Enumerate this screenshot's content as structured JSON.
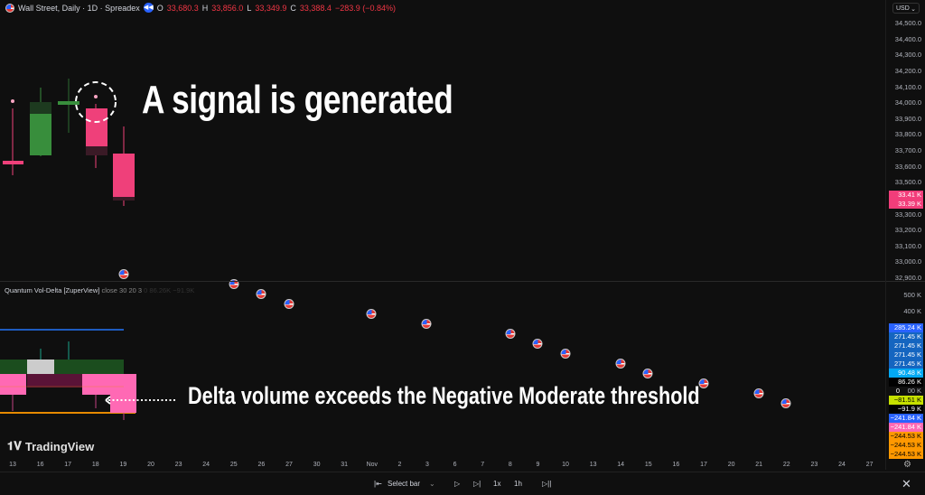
{
  "header": {
    "symbol": "Wall Street, Daily · 1D · Spreadex",
    "open_label": "O",
    "open": "33,680.3",
    "high_label": "H",
    "high": "33,856.0",
    "low_label": "L",
    "low": "33,349.9",
    "close_label": "C",
    "close": "33,388.4",
    "change": "−283.9 (−0.84%)",
    "replay_icon": "rewind-icon"
  },
  "currency": "USD",
  "price_ticks": [
    "34,500.0",
    "34,400.0",
    "34,300.0",
    "34,200.0",
    "34,100.0",
    "34,000.0",
    "33,900.0",
    "33,800.0",
    "33,700.0",
    "33,600.0",
    "33,500.0",
    "33,300.0",
    "33,200.0",
    "33,100.0",
    "33,000.0",
    "32,900.0"
  ],
  "price_labels": [
    {
      "text": "33.41 K",
      "color": "#f23d7a"
    },
    {
      "text": "33.39 K",
      "color": "#f23d7a"
    }
  ],
  "indicator": {
    "name": "Quantum Vol-Delta [ZuperView]",
    "params": "close 30 20 3",
    "values": "0  86.26K  −91.9K"
  },
  "indicator_ticks": [
    "500 K",
    "400 K",
    "00 K"
  ],
  "indicator_labels": [
    {
      "text": "285.24 K",
      "bg": "#2962ff",
      "fg": "#fff"
    },
    {
      "text": "271.45 K",
      "bg": "#1565c0",
      "fg": "#fff"
    },
    {
      "text": "271.45 K",
      "bg": "#1565c0",
      "fg": "#fff"
    },
    {
      "text": "271.45 K",
      "bg": "#1565c0",
      "fg": "#fff"
    },
    {
      "text": "271.45 K",
      "bg": "#1565c0",
      "fg": "#fff"
    },
    {
      "text": "90.48 K",
      "bg": "#03a9f4",
      "fg": "#fff"
    },
    {
      "text": "86.26 K",
      "bg": "#000",
      "fg": "#fff"
    },
    {
      "text": "0",
      "bg": "transparent",
      "fg": "#fff"
    },
    {
      "text": "−81.51 K",
      "bg": "#c6e000",
      "fg": "#000"
    },
    {
      "text": "−91.9 K",
      "bg": "#000",
      "fg": "#fff"
    },
    {
      "text": "−241.84 K",
      "bg": "#2962ff",
      "fg": "#fff"
    },
    {
      "text": "−241.84 K",
      "bg": "#ff69b4",
      "fg": "#fff"
    },
    {
      "text": "−244.53 K",
      "bg": "#ff9800",
      "fg": "#000"
    },
    {
      "text": "−244.53 K",
      "bg": "#ff9800",
      "fg": "#000"
    },
    {
      "text": "−244.53 K",
      "bg": "#ff9800",
      "fg": "#000"
    }
  ],
  "annotations": {
    "signal": "A signal is generated",
    "delta": "Delta volume exceeds the Negative Moderate threshold"
  },
  "time_labels": [
    "13",
    "16",
    "17",
    "18",
    "19",
    "20",
    "23",
    "24",
    "25",
    "26",
    "27",
    "30",
    "31",
    "Nov",
    "2",
    "3",
    "6",
    "7",
    "8",
    "9",
    "10",
    "13",
    "14",
    "15",
    "16",
    "17",
    "20",
    "21",
    "22",
    "23",
    "24",
    "27"
  ],
  "event_icon": "us-flag-icon",
  "brand": "TradingView",
  "toolbar": {
    "select_bar": "Select bar",
    "speed": "1x",
    "interval": "1h"
  },
  "colors": {
    "bull": "#388e3c",
    "bear": "#ef407a",
    "background": "#0f0f0f"
  }
}
